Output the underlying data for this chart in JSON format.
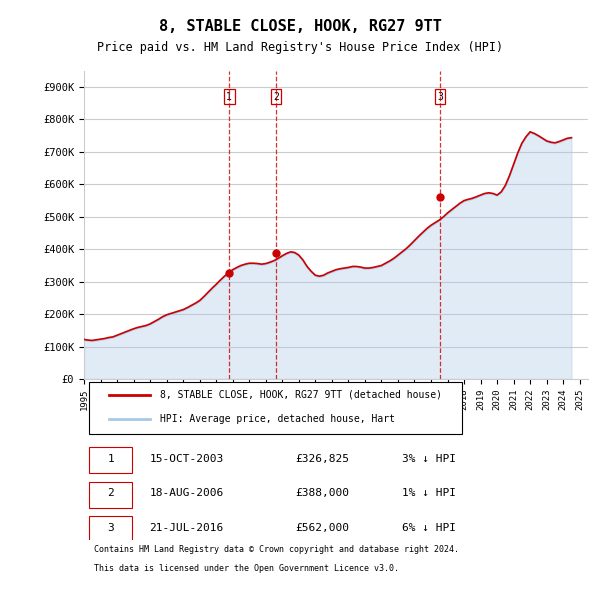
{
  "title": "8, STABLE CLOSE, HOOK, RG27 9TT",
  "subtitle": "Price paid vs. HM Land Registry's House Price Index (HPI)",
  "ylabel_ticks": [
    "£0",
    "£100K",
    "£200K",
    "£300K",
    "£400K",
    "£500K",
    "£600K",
    "£700K",
    "£800K",
    "£900K"
  ],
  "ytick_vals": [
    0,
    100000,
    200000,
    300000,
    400000,
    500000,
    600000,
    700000,
    800000,
    900000
  ],
  "ylim": [
    0,
    950000
  ],
  "xlim_start": 1995.0,
  "xlim_end": 2025.5,
  "hpi_color": "#a8c8e8",
  "price_color": "#cc0000",
  "vline_color": "#cc0000",
  "transaction_marker_color": "#cc0000",
  "background_color": "#ffffff",
  "grid_color": "#cccccc",
  "legend_house_label": "8, STABLE CLOSE, HOOK, RG27 9TT (detached house)",
  "legend_hpi_label": "HPI: Average price, detached house, Hart",
  "transactions": [
    {
      "num": 1,
      "date": "15-OCT-2003",
      "price": "£326,825",
      "pct": "3%",
      "dir": "↓",
      "year": 2003.79
    },
    {
      "num": 2,
      "date": "18-AUG-2006",
      "price": "£388,000",
      "pct": "1%",
      "dir": "↓",
      "year": 2006.62
    },
    {
      "num": 3,
      "date": "21-JUL-2016",
      "price": "£562,000",
      "pct": "6%",
      "dir": "↓",
      "year": 2016.55
    }
  ],
  "footnote1": "Contains HM Land Registry data © Crown copyright and database right 2024.",
  "footnote2": "This data is licensed under the Open Government Licence v3.0.",
  "hpi_data_x": [
    1995.0,
    1995.25,
    1995.5,
    1995.75,
    1996.0,
    1996.25,
    1996.5,
    1996.75,
    1997.0,
    1997.25,
    1997.5,
    1997.75,
    1998.0,
    1998.25,
    1998.5,
    1998.75,
    1999.0,
    1999.25,
    1999.5,
    1999.75,
    2000.0,
    2000.25,
    2000.5,
    2000.75,
    2001.0,
    2001.25,
    2001.5,
    2001.75,
    2002.0,
    2002.25,
    2002.5,
    2002.75,
    2003.0,
    2003.25,
    2003.5,
    2003.75,
    2004.0,
    2004.25,
    2004.5,
    2004.75,
    2005.0,
    2005.25,
    2005.5,
    2005.75,
    2006.0,
    2006.25,
    2006.5,
    2006.75,
    2007.0,
    2007.25,
    2007.5,
    2007.75,
    2008.0,
    2008.25,
    2008.5,
    2008.75,
    2009.0,
    2009.25,
    2009.5,
    2009.75,
    2010.0,
    2010.25,
    2010.5,
    2010.75,
    2011.0,
    2011.25,
    2011.5,
    2011.75,
    2012.0,
    2012.25,
    2012.5,
    2012.75,
    2013.0,
    2013.25,
    2013.5,
    2013.75,
    2014.0,
    2014.25,
    2014.5,
    2014.75,
    2015.0,
    2015.25,
    2015.5,
    2015.75,
    2016.0,
    2016.25,
    2016.5,
    2016.75,
    2017.0,
    2017.25,
    2017.5,
    2017.75,
    2018.0,
    2018.25,
    2018.5,
    2018.75,
    2019.0,
    2019.25,
    2019.5,
    2019.75,
    2020.0,
    2020.25,
    2020.5,
    2020.75,
    2021.0,
    2021.25,
    2021.5,
    2021.75,
    2022.0,
    2022.25,
    2022.5,
    2022.75,
    2023.0,
    2023.25,
    2023.5,
    2023.75,
    2024.0,
    2024.25,
    2024.5
  ],
  "hpi_data_y": [
    120000,
    118000,
    117000,
    119000,
    121000,
    123000,
    126000,
    128000,
    133000,
    138000,
    143000,
    148000,
    153000,
    157000,
    160000,
    163000,
    168000,
    175000,
    182000,
    190000,
    196000,
    200000,
    204000,
    208000,
    212000,
    218000,
    225000,
    232000,
    240000,
    252000,
    265000,
    278000,
    290000,
    303000,
    315000,
    325000,
    335000,
    342000,
    348000,
    352000,
    355000,
    355000,
    354000,
    352000,
    354000,
    358000,
    363000,
    370000,
    378000,
    385000,
    390000,
    388000,
    380000,
    365000,
    345000,
    330000,
    318000,
    315000,
    318000,
    325000,
    330000,
    335000,
    338000,
    340000,
    342000,
    345000,
    345000,
    343000,
    340000,
    340000,
    342000,
    345000,
    348000,
    355000,
    362000,
    370000,
    380000,
    390000,
    400000,
    412000,
    425000,
    438000,
    450000,
    462000,
    472000,
    480000,
    488000,
    498000,
    510000,
    520000,
    530000,
    540000,
    548000,
    552000,
    555000,
    560000,
    565000,
    570000,
    572000,
    570000,
    565000,
    575000,
    595000,
    625000,
    660000,
    695000,
    725000,
    745000,
    760000,
    755000,
    748000,
    740000,
    732000,
    728000,
    726000,
    730000,
    735000,
    740000,
    742000
  ],
  "price_data_x": [
    1995.0,
    1995.25,
    1995.5,
    1995.75,
    1996.0,
    1996.25,
    1996.5,
    1996.75,
    1997.0,
    1997.25,
    1997.5,
    1997.75,
    1998.0,
    1998.25,
    1998.5,
    1998.75,
    1999.0,
    1999.25,
    1999.5,
    1999.75,
    2000.0,
    2000.25,
    2000.5,
    2000.75,
    2001.0,
    2001.25,
    2001.5,
    2001.75,
    2002.0,
    2002.25,
    2002.5,
    2002.75,
    2003.0,
    2003.25,
    2003.5,
    2003.75,
    2004.0,
    2004.25,
    2004.5,
    2004.75,
    2005.0,
    2005.25,
    2005.5,
    2005.75,
    2006.0,
    2006.25,
    2006.5,
    2006.75,
    2007.0,
    2007.25,
    2007.5,
    2007.75,
    2008.0,
    2008.25,
    2008.5,
    2008.75,
    2009.0,
    2009.25,
    2009.5,
    2009.75,
    2010.0,
    2010.25,
    2010.5,
    2010.75,
    2011.0,
    2011.25,
    2011.5,
    2011.75,
    2012.0,
    2012.25,
    2012.5,
    2012.75,
    2013.0,
    2013.25,
    2013.5,
    2013.75,
    2014.0,
    2014.25,
    2014.5,
    2014.75,
    2015.0,
    2015.25,
    2015.5,
    2015.75,
    2016.0,
    2016.25,
    2016.5,
    2016.75,
    2017.0,
    2017.25,
    2017.5,
    2017.75,
    2018.0,
    2018.25,
    2018.5,
    2018.75,
    2019.0,
    2019.25,
    2019.5,
    2019.75,
    2020.0,
    2020.25,
    2020.5,
    2020.75,
    2021.0,
    2021.25,
    2021.5,
    2021.75,
    2022.0,
    2022.25,
    2022.5,
    2022.75,
    2023.0,
    2023.25,
    2023.5,
    2023.75,
    2024.0,
    2024.25,
    2024.5
  ],
  "price_data_y": [
    122000,
    120000,
    119000,
    121000,
    123000,
    125000,
    128000,
    130000,
    135000,
    140000,
    145000,
    150000,
    155000,
    159000,
    162000,
    165000,
    170000,
    177000,
    184000,
    192000,
    198000,
    202000,
    206000,
    210000,
    214000,
    220000,
    227000,
    234000,
    242000,
    254000,
    267000,
    280000,
    292000,
    305000,
    317000,
    327000,
    337000,
    344000,
    350000,
    354000,
    357000,
    357000,
    356000,
    354000,
    356000,
    360000,
    365000,
    372000,
    380000,
    387000,
    392000,
    390000,
    382000,
    367000,
    347000,
    332000,
    320000,
    317000,
    320000,
    327000,
    332000,
    337000,
    340000,
    342000,
    344000,
    347000,
    347000,
    345000,
    342000,
    342000,
    344000,
    347000,
    350000,
    357000,
    364000,
    372000,
    382000,
    392000,
    402000,
    414000,
    427000,
    440000,
    452000,
    464000,
    474000,
    482000,
    490000,
    500000,
    512000,
    522000,
    532000,
    542000,
    550000,
    554000,
    557000,
    562000,
    567000,
    572000,
    574000,
    572000,
    567000,
    577000,
    597000,
    627000,
    662000,
    697000,
    727000,
    747000,
    762000,
    757000,
    750000,
    742000,
    734000,
    730000,
    728000,
    732000,
    737000,
    742000,
    744000
  ],
  "transaction_prices": [
    326825,
    388000,
    562000
  ]
}
